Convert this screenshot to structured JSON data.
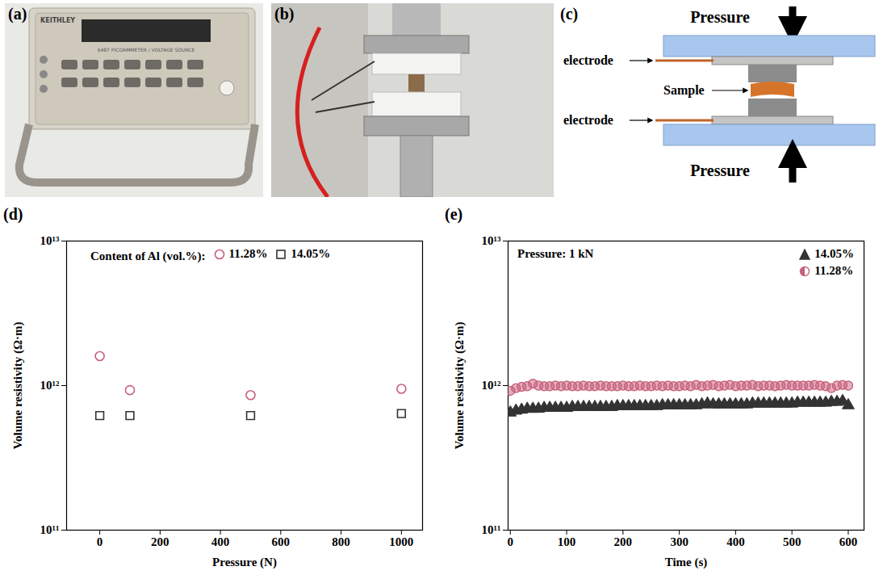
{
  "figure": {
    "panel_a": {
      "label": "(a)",
      "brand": "KEITHLEY",
      "model": "6487 PICOAMMETER / VOLTAGE SOURCE"
    },
    "panel_b": {
      "label": "(b)"
    },
    "panel_c": {
      "label": "(c)",
      "pressure_top": "Pressure",
      "pressure_bottom": "Pressure",
      "electrode_top": "electrode",
      "electrode_bottom": "electrode",
      "sample": "Sample"
    }
  },
  "chart_data": [
    {
      "panel_label": "(d)",
      "type": "scatter",
      "x_label": "Pressure (N)",
      "y_label": "Volume resistivity (Ω·m)",
      "log": "y",
      "xlim": [
        -110,
        1070
      ],
      "xticks": [
        0,
        200,
        400,
        600,
        800,
        1000
      ],
      "ylim": [
        100000000000.0,
        10000000000000.0
      ],
      "yticks": [
        {
          "value": 100000000000.0,
          "label": "10¹¹"
        },
        {
          "value": 1000000000000.0,
          "label": "10¹²"
        },
        {
          "value": 10000000000000.0,
          "label": "10¹³"
        }
      ],
      "legend": "top",
      "legend_title": "Content of Al (vol.%):",
      "x": [
        0,
        100,
        500,
        1000
      ],
      "series": [
        {
          "name": "11.28%",
          "color": "#c8607c",
          "marker": "circle-open",
          "values": [
            1600000000000.0,
            930000000000.0,
            860000000000.0,
            950000000000.0
          ]
        },
        {
          "name": "14.05%",
          "color": "#333333",
          "marker": "square-open",
          "values": [
            620000000000.0,
            620000000000.0,
            620000000000.0,
            640000000000.0
          ]
        }
      ]
    },
    {
      "panel_label": "(e)",
      "type": "scatter",
      "x_label": "Time (s)",
      "y_label": "Volume resistivity (Ω·m)",
      "log": "y",
      "xlim": [
        -4,
        628
      ],
      "xticks": [
        0,
        100,
        200,
        300,
        400,
        500,
        600
      ],
      "ylim": [
        100000000000.0,
        10000000000000.0
      ],
      "yticks": [
        {
          "value": 100000000000.0,
          "label": "10¹¹"
        },
        {
          "value": 1000000000000.0,
          "label": "10¹²"
        },
        {
          "value": 10000000000000.0,
          "label": "10¹³"
        }
      ],
      "annotations": [
        "Pressure: 1 kN"
      ],
      "legend": "top-right",
      "x": [
        0,
        10,
        20,
        30,
        40,
        50,
        60,
        70,
        80,
        90,
        100,
        110,
        120,
        130,
        140,
        150,
        160,
        170,
        180,
        190,
        200,
        210,
        220,
        230,
        240,
        250,
        260,
        270,
        280,
        290,
        300,
        310,
        320,
        330,
        340,
        350,
        360,
        370,
        380,
        390,
        400,
        410,
        420,
        430,
        440,
        450,
        460,
        470,
        480,
        490,
        500,
        510,
        520,
        530,
        540,
        550,
        560,
        570,
        580,
        590,
        600
      ],
      "series": [
        {
          "name": "14.05%",
          "color": "#333333",
          "marker": "triangle",
          "values": [
            650000000000.0,
            670000000000.0,
            680000000000.0,
            690000000000.0,
            690000000000.0,
            690000000000.0,
            700000000000.0,
            700000000000.0,
            700000000000.0,
            700000000000.0,
            700000000000.0,
            710000000000.0,
            710000000000.0,
            710000000000.0,
            710000000000.0,
            710000000000.0,
            710000000000.0,
            710000000000.0,
            710000000000.0,
            720000000000.0,
            720000000000.0,
            720000000000.0,
            720000000000.0,
            720000000000.0,
            720000000000.0,
            720000000000.0,
            720000000000.0,
            730000000000.0,
            730000000000.0,
            730000000000.0,
            730000000000.0,
            730000000000.0,
            730000000000.0,
            730000000000.0,
            740000000000.0,
            750000000000.0,
            740000000000.0,
            740000000000.0,
            740000000000.0,
            740000000000.0,
            740000000000.0,
            740000000000.0,
            740000000000.0,
            750000000000.0,
            750000000000.0,
            750000000000.0,
            750000000000.0,
            750000000000.0,
            750000000000.0,
            750000000000.0,
            750000000000.0,
            760000000000.0,
            760000000000.0,
            760000000000.0,
            760000000000.0,
            760000000000.0,
            760000000000.0,
            770000000000.0,
            770000000000.0,
            780000000000.0,
            730000000000.0
          ]
        },
        {
          "name": "11.28%",
          "color": "#c8607c",
          "marker": "circle-half",
          "values": [
            920000000000.0,
            960000000000.0,
            980000000000.0,
            990000000000.0,
            1030000000000.0,
            1000000000000.0,
            990000000000.0,
            990000000000.0,
            1000000000000.0,
            990000000000.0,
            1000000000000.0,
            990000000000.0,
            990000000000.0,
            1000000000000.0,
            990000000000.0,
            990000000000.0,
            1000000000000.0,
            990000000000.0,
            990000000000.0,
            990000000000.0,
            1000000000000.0,
            990000000000.0,
            990000000000.0,
            1000000000000.0,
            990000000000.0,
            990000000000.0,
            1000000000000.0,
            990000000000.0,
            1000000000000.0,
            990000000000.0,
            990000000000.0,
            1000000000000.0,
            990000000000.0,
            1010000000000.0,
            990000000000.0,
            1000000000000.0,
            1010000000000.0,
            990000000000.0,
            1000000000000.0,
            1010000000000.0,
            990000000000.0,
            1000000000000.0,
            1000000000000.0,
            1010000000000.0,
            990000000000.0,
            1000000000000.0,
            1000000000000.0,
            990000000000.0,
            1000000000000.0,
            1010000000000.0,
            1000000000000.0,
            1000000000000.0,
            1000000000000.0,
            1000000000000.0,
            1010000000000.0,
            1000000000000.0,
            990000000000.0,
            960000000000.0,
            1000000000000.0,
            1010000000000.0,
            1000000000000.0
          ]
        }
      ]
    }
  ]
}
